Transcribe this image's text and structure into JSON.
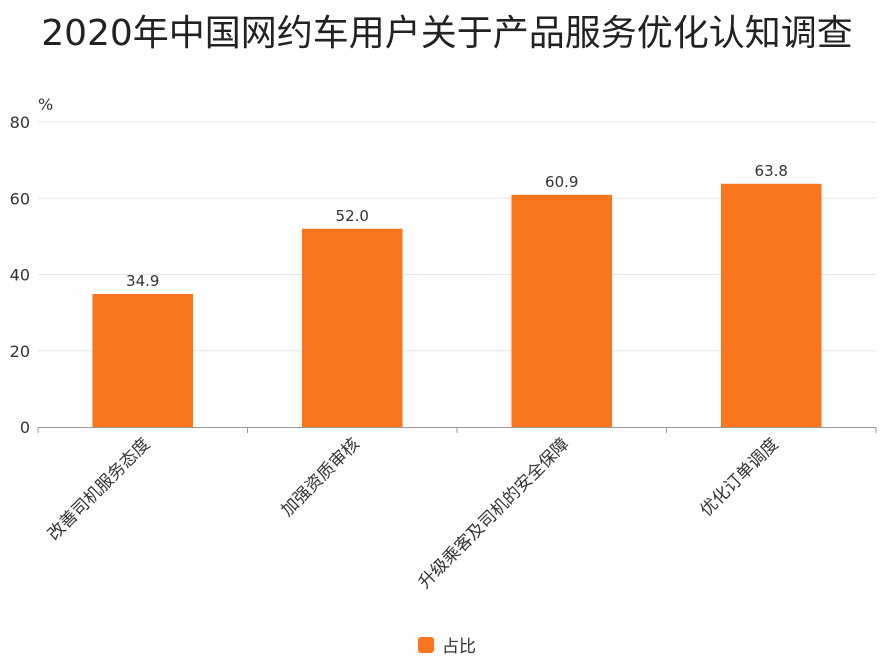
{
  "chart_data": {
    "type": "bar",
    "title": "2020年中国网约车用户关于产品服务优化认知调查",
    "unit_label": "%",
    "categories": [
      "改善司机服务态度",
      "加强资质审核",
      "升级乘客及司机的安全保障",
      "优化订单调度"
    ],
    "series": [
      {
        "name": "占比",
        "values": [
          34.9,
          52.0,
          60.9,
          63.8
        ]
      }
    ],
    "value_labels": [
      "34.9",
      "52.0",
      "60.9",
      "63.8"
    ],
    "ylim": [
      0,
      80
    ],
    "yticks": [
      "0",
      "20",
      "40",
      "60",
      "80"
    ],
    "grid": true,
    "legend_position": "bottom",
    "colors": {
      "bar": "#FA761E",
      "grid": "#E6E6E6",
      "axis": "#999999"
    }
  }
}
